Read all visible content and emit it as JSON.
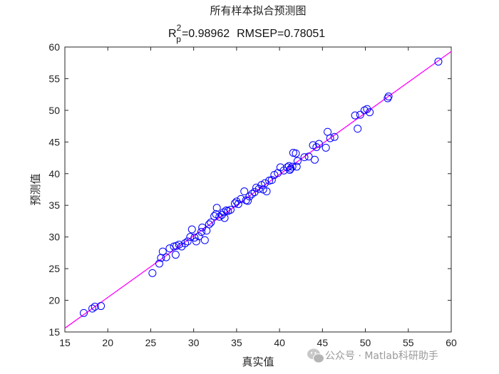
{
  "chart_data": {
    "type": "scatter",
    "title": "所有样本拟合预测图",
    "subtitle": {
      "r_base": "R",
      "r_sup": "2",
      "r_sub": "p",
      "r_value": "=0.98962",
      "rmsep": "RMSEP=0.78051"
    },
    "xlabel": "真实值",
    "ylabel": "预测值",
    "xlim": [
      15,
      60
    ],
    "ylim": [
      15,
      60
    ],
    "xticks": [
      "15",
      "20",
      "25",
      "30",
      "35",
      "40",
      "45",
      "50",
      "55",
      "60"
    ],
    "yticks": [
      "15",
      "20",
      "25",
      "30",
      "35",
      "40",
      "45",
      "50",
      "55",
      "60"
    ],
    "grid": false,
    "fit_line": {
      "color": "#ff00ff",
      "x": [
        15,
        60
      ],
      "y": [
        15.6,
        59.3
      ]
    },
    "marker": {
      "shape": "circle",
      "color": "#0000ff"
    },
    "points": [
      {
        "x": 17.2,
        "y": 18.0
      },
      {
        "x": 18.2,
        "y": 18.7
      },
      {
        "x": 18.5,
        "y": 19.0
      },
      {
        "x": 19.2,
        "y": 19.1
      },
      {
        "x": 25.2,
        "y": 24.3
      },
      {
        "x": 26.0,
        "y": 25.8
      },
      {
        "x": 26.2,
        "y": 26.7
      },
      {
        "x": 26.4,
        "y": 27.7
      },
      {
        "x": 26.8,
        "y": 26.8
      },
      {
        "x": 27.2,
        "y": 28.2
      },
      {
        "x": 27.7,
        "y": 28.5
      },
      {
        "x": 27.9,
        "y": 27.2
      },
      {
        "x": 28.0,
        "y": 28.6
      },
      {
        "x": 28.3,
        "y": 28.8
      },
      {
        "x": 28.6,
        "y": 28.5
      },
      {
        "x": 29.0,
        "y": 29.0
      },
      {
        "x": 29.3,
        "y": 29.3
      },
      {
        "x": 29.6,
        "y": 30.0
      },
      {
        "x": 29.8,
        "y": 31.2
      },
      {
        "x": 30.1,
        "y": 29.9
      },
      {
        "x": 30.3,
        "y": 29.3
      },
      {
        "x": 30.6,
        "y": 30.1
      },
      {
        "x": 30.9,
        "y": 30.8
      },
      {
        "x": 31.0,
        "y": 31.5
      },
      {
        "x": 31.3,
        "y": 29.5
      },
      {
        "x": 31.5,
        "y": 31.0
      },
      {
        "x": 31.8,
        "y": 32.0
      },
      {
        "x": 32.0,
        "y": 32.3
      },
      {
        "x": 32.4,
        "y": 33.3
      },
      {
        "x": 32.6,
        "y": 33.6
      },
      {
        "x": 32.7,
        "y": 34.6
      },
      {
        "x": 33.0,
        "y": 33.2
      },
      {
        "x": 33.3,
        "y": 33.5
      },
      {
        "x": 33.5,
        "y": 33.9
      },
      {
        "x": 33.6,
        "y": 33.0
      },
      {
        "x": 33.8,
        "y": 34.2
      },
      {
        "x": 34.0,
        "y": 34.1
      },
      {
        "x": 34.3,
        "y": 34.3
      },
      {
        "x": 34.8,
        "y": 35.3
      },
      {
        "x": 35.0,
        "y": 35.6
      },
      {
        "x": 35.2,
        "y": 35.2
      },
      {
        "x": 35.5,
        "y": 36.0
      },
      {
        "x": 35.9,
        "y": 37.2
      },
      {
        "x": 36.1,
        "y": 35.8
      },
      {
        "x": 36.3,
        "y": 35.7
      },
      {
        "x": 36.5,
        "y": 36.4
      },
      {
        "x": 36.8,
        "y": 36.8
      },
      {
        "x": 37.1,
        "y": 37.1
      },
      {
        "x": 37.3,
        "y": 37.8
      },
      {
        "x": 37.6,
        "y": 37.6
      },
      {
        "x": 37.9,
        "y": 38.2
      },
      {
        "x": 38.1,
        "y": 37.5
      },
      {
        "x": 38.3,
        "y": 38.5
      },
      {
        "x": 38.5,
        "y": 37.2
      },
      {
        "x": 38.8,
        "y": 38.9
      },
      {
        "x": 39.1,
        "y": 39.0
      },
      {
        "x": 39.4,
        "y": 39.8
      },
      {
        "x": 39.8,
        "y": 40.1
      },
      {
        "x": 40.1,
        "y": 41.0
      },
      {
        "x": 40.5,
        "y": 40.5
      },
      {
        "x": 40.9,
        "y": 41.0
      },
      {
        "x": 41.1,
        "y": 41.2
      },
      {
        "x": 41.2,
        "y": 40.6
      },
      {
        "x": 41.3,
        "y": 40.8
      },
      {
        "x": 41.5,
        "y": 41.1
      },
      {
        "x": 41.6,
        "y": 43.3
      },
      {
        "x": 41.9,
        "y": 43.2
      },
      {
        "x": 42.0,
        "y": 41.1
      },
      {
        "x": 42.1,
        "y": 42.0
      },
      {
        "x": 42.9,
        "y": 42.6
      },
      {
        "x": 43.4,
        "y": 42.7
      },
      {
        "x": 43.9,
        "y": 44.5
      },
      {
        "x": 44.1,
        "y": 42.2
      },
      {
        "x": 44.3,
        "y": 44.2
      },
      {
        "x": 44.6,
        "y": 44.7
      },
      {
        "x": 45.4,
        "y": 44.1
      },
      {
        "x": 45.6,
        "y": 46.6
      },
      {
        "x": 45.9,
        "y": 45.6
      },
      {
        "x": 46.4,
        "y": 45.8
      },
      {
        "x": 48.8,
        "y": 49.2
      },
      {
        "x": 49.1,
        "y": 47.1
      },
      {
        "x": 49.4,
        "y": 49.3
      },
      {
        "x": 49.9,
        "y": 50.0
      },
      {
        "x": 50.2,
        "y": 50.2
      },
      {
        "x": 50.5,
        "y": 49.7
      },
      {
        "x": 52.6,
        "y": 51.9
      },
      {
        "x": 52.7,
        "y": 52.2
      },
      {
        "x": 58.5,
        "y": 57.7
      }
    ]
  },
  "watermark": {
    "icon": "wechat-icon",
    "text": "公众号 · Matlab科研助手"
  }
}
